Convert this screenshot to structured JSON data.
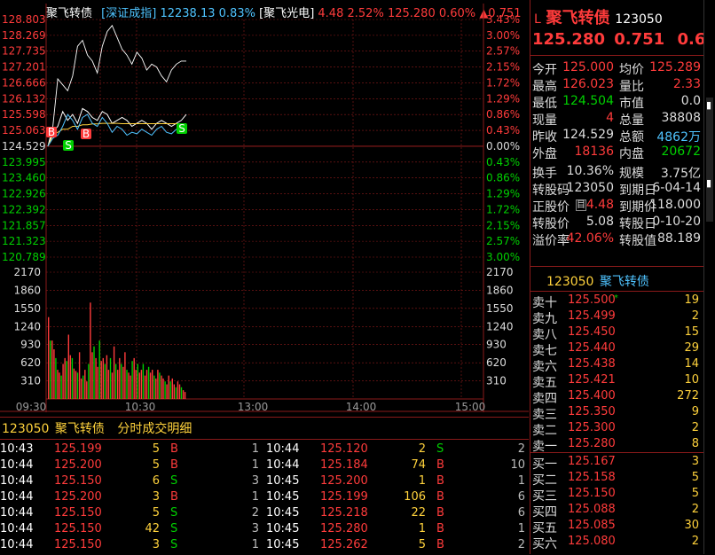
{
  "header": {
    "name": "聚飞转债",
    "index_name": "深证成指",
    "index_value": "12238.13",
    "index_pct": "0.83%",
    "stock_name": "聚飞光电",
    "stock_price": "4.48",
    "stock_pct": "2.52%",
    "bond_price": "125.280",
    "bond_pct": "0.60%",
    "bond_change": "▲0.751"
  },
  "axes": {
    "left_prices": [
      "128.803",
      "128.269",
      "127.735",
      "127.201",
      "126.666",
      "126.132",
      "125.598",
      "125.063",
      "124.529",
      "123.995",
      "123.460",
      "122.926",
      "122.392",
      "121.857",
      "121.323",
      "120.789"
    ],
    "right_pcts": [
      "3.43%",
      "3.00%",
      "2.57%",
      "2.15%",
      "1.72%",
      "1.29%",
      "0.86%",
      "0.43%",
      "0.00%",
      "0.43%",
      "0.86%",
      "1.29%",
      "1.72%",
      "2.15%",
      "2.57%",
      "3.00%"
    ],
    "vol_ticks": [
      "2170",
      "1860",
      "1550",
      "1240",
      "930",
      "620",
      "310"
    ],
    "times": [
      "09:30",
      "10:30",
      "13:00",
      "14:00",
      "15:00"
    ],
    "markers": [
      "B",
      "B",
      "S",
      "S"
    ]
  },
  "chart_data": {
    "type": "line",
    "title": "",
    "x_range": [
      "09:30",
      "15:00"
    ],
    "ylim": [
      120.789,
      128.803
    ],
    "base_price": 124.529,
    "series": [
      {
        "values": [
          124.53,
          125.2,
          126.8,
          126.6,
          126.4,
          126.9,
          127.9,
          128.1,
          127.6,
          127.4,
          127.0,
          127.9,
          128.4,
          128.6,
          128.2,
          127.8,
          127.6,
          127.3,
          127.7,
          127.5,
          127.1,
          127.3,
          127.2,
          126.9,
          126.7,
          127.1,
          127.3,
          127.4,
          127.4
        ]
      },
      {
        "values": [
          124.53,
          125.0,
          125.2,
          125.7,
          125.4,
          125.6,
          125.3,
          125.8,
          125.7,
          125.5,
          125.4,
          125.7,
          125.6,
          125.3,
          125.4,
          125.5,
          125.4,
          125.2,
          125.3,
          125.4,
          125.3,
          125.1,
          125.3,
          125.4,
          125.3,
          125.2,
          125.3,
          125.4,
          125.6
        ]
      },
      {
        "values": [
          124.53,
          124.9,
          125.0,
          125.1,
          125.1,
          125.2,
          125.2,
          125.25,
          125.25,
          125.28,
          125.28,
          125.3,
          125.3,
          125.3,
          125.3,
          125.29,
          125.29,
          125.29,
          125.29,
          125.29,
          125.29,
          125.29,
          125.29,
          125.29,
          125.29,
          125.29,
          125.29,
          125.29,
          125.29
        ]
      },
      {
        "values": [
          124.53,
          124.8,
          124.9,
          125.2,
          125.6,
          125.4,
          125.1,
          125.5,
          125.6,
          125.3,
          125.2,
          125.5,
          125.3,
          125.0,
          125.2,
          125.1,
          124.9,
          125.0,
          124.95,
          125.1,
          125.0,
          124.9,
          125.1,
          125.2,
          125.0,
          124.95,
          125.1,
          125.2,
          125.28
        ]
      }
    ],
    "volume": [
      1400,
      1000,
      1000,
      850,
      700,
      500,
      450,
      400,
      600,
      700,
      650,
      1100,
      750,
      700,
      520,
      480,
      450,
      800,
      350,
      400,
      500,
      300,
      600,
      1650,
      800,
      900,
      700,
      550,
      1000,
      650,
      700,
      600,
      750,
      500,
      700,
      450,
      900,
      600,
      500,
      700,
      600,
      550,
      800,
      500,
      450,
      400,
      650,
      700,
      500,
      600,
      450,
      500,
      600,
      400,
      500,
      550,
      450,
      500,
      400,
      350,
      500,
      450,
      400,
      350,
      300,
      250,
      400,
      300,
      350,
      250,
      200,
      300,
      250,
      200,
      150,
      120
    ],
    "volume_ylim": [
      0,
      2170
    ]
  },
  "quote": {
    "header_code": "123050",
    "header_name": "聚飞转债",
    "prefix": "L",
    "price": "125.280",
    "change": "0.751",
    "pct": "0.60%",
    "rows": [
      {
        "l1": "今开",
        "v1": "125.000",
        "l2": "均价",
        "v2": "125.289"
      },
      {
        "l1": "最高",
        "v1": "126.023",
        "l2": "量比",
        "v2": "2.33"
      },
      {
        "l1": "最低",
        "v1": "124.504",
        "l2": "市值",
        "v2": "0.0"
      },
      {
        "l1": "现量",
        "v1": "4",
        "l2": "总量",
        "v2": "38808"
      },
      {
        "l1": "昨收",
        "v1": "124.529",
        "l2": "总额",
        "v2": "4862万"
      },
      {
        "l1": "外盘",
        "v1": "18136",
        "l2": "内盘",
        "v2": "20672"
      },
      {
        "l1": "换手",
        "v1": "10.36%",
        "l2": "规模",
        "v2": "3.75亿"
      },
      {
        "l1": "转股码",
        "v1": "123050",
        "l2": "到期日",
        "v2": "6-04-14"
      },
      {
        "l1": "正股价",
        "v1": "4.48",
        "l2": "到期价",
        "v2": "118.000"
      },
      {
        "l1": "转股价",
        "v1": "5.08",
        "l2": "转股日",
        "v2": "0-10-20"
      },
      {
        "l1": "溢价率",
        "v1": "42.06%",
        "l2": "转股值",
        "v2": "88.189"
      }
    ],
    "note_glyph": "目"
  },
  "orderbook": {
    "code": "123050",
    "name": "聚飞转债",
    "asks": [
      {
        "label": "卖十",
        "price": "125.500",
        "vol": "19",
        "mark": "*"
      },
      {
        "label": "卖九",
        "price": "125.499",
        "vol": "2"
      },
      {
        "label": "卖八",
        "price": "125.450",
        "vol": "15"
      },
      {
        "label": "卖七",
        "price": "125.440",
        "vol": "29"
      },
      {
        "label": "卖六",
        "price": "125.438",
        "vol": "14"
      },
      {
        "label": "卖五",
        "price": "125.421",
        "vol": "10"
      },
      {
        "label": "卖四",
        "price": "125.400",
        "vol": "272"
      },
      {
        "label": "卖三",
        "price": "125.350",
        "vol": "9"
      },
      {
        "label": "卖二",
        "price": "125.300",
        "vol": "2"
      },
      {
        "label": "卖一",
        "price": "125.280",
        "vol": "8"
      }
    ],
    "bids": [
      {
        "label": "买一",
        "price": "125.167",
        "vol": "3"
      },
      {
        "label": "买二",
        "price": "125.158",
        "vol": "5"
      },
      {
        "label": "买三",
        "price": "125.150",
        "vol": "5"
      },
      {
        "label": "买四",
        "price": "125.088",
        "vol": "2"
      },
      {
        "label": "买五",
        "price": "125.085",
        "vol": "30"
      },
      {
        "label": "买六",
        "price": "125.080",
        "vol": "2"
      }
    ]
  },
  "ticks": {
    "title_code": "123050",
    "title_name": "聚飞转债",
    "title_label": "分时成交明细",
    "col1": [
      {
        "t": "10:43",
        "p": "125.199",
        "v": "5",
        "d": "B",
        "n": "1"
      },
      {
        "t": "10:44",
        "p": "125.200",
        "v": "5",
        "d": "B",
        "n": "1"
      },
      {
        "t": "10:44",
        "p": "125.150",
        "v": "6",
        "d": "S",
        "n": "3"
      },
      {
        "t": "10:44",
        "p": "125.200",
        "v": "3",
        "d": "B",
        "n": "1"
      },
      {
        "t": "10:44",
        "p": "125.150",
        "v": "5",
        "d": "S",
        "n": "2"
      },
      {
        "t": "10:44",
        "p": "125.150",
        "v": "42",
        "d": "S",
        "n": "3"
      },
      {
        "t": "10:44",
        "p": "125.150",
        "v": "3",
        "d": "S",
        "n": "1"
      }
    ],
    "col2": [
      {
        "t": "10:44",
        "p": "125.120",
        "v": "2",
        "d": "S",
        "n": "2"
      },
      {
        "t": "10:44",
        "p": "125.184",
        "v": "74",
        "d": "B",
        "n": "10"
      },
      {
        "t": "10:45",
        "p": "125.200",
        "v": "1",
        "d": "B",
        "n": "1"
      },
      {
        "t": "10:45",
        "p": "125.199",
        "v": "106",
        "d": "B",
        "n": "6"
      },
      {
        "t": "10:45",
        "p": "125.218",
        "v": "22",
        "d": "B",
        "n": "6"
      },
      {
        "t": "10:45",
        "p": "125.280",
        "v": "1",
        "d": "B",
        "n": "1"
      },
      {
        "t": "10:45",
        "p": "125.262",
        "v": "5",
        "d": "B",
        "n": "2"
      }
    ]
  },
  "colors": {
    "up": "#ff3b3b",
    "down": "#00d000",
    "grid": "#8a1a1a",
    "price_line": "#ffffff",
    "avg_line": "#ffd23c"
  }
}
